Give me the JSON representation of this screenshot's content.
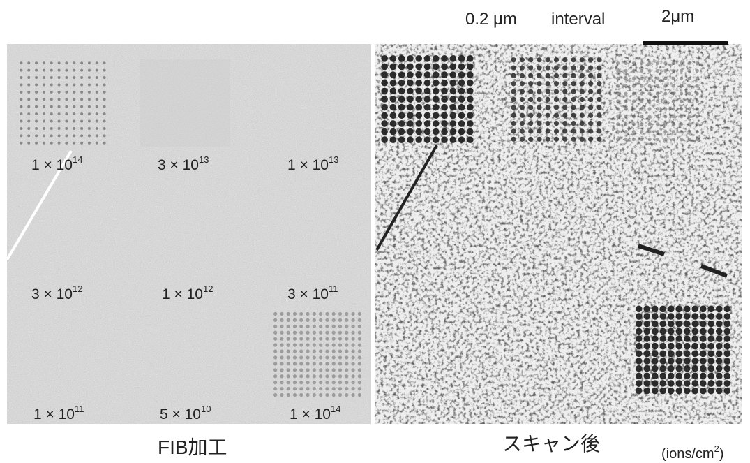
{
  "header": {
    "interval_value": "0.2 μm",
    "interval_word": "interval",
    "scale_bar": "2μm"
  },
  "left_panel": {
    "caption": "FIB加工",
    "labels": [
      {
        "base": "1 × 10",
        "exp": "14"
      },
      {
        "base": "3 × 10",
        "exp": "13"
      },
      {
        "base": "1 × 10",
        "exp": "13"
      },
      {
        "base": "3 × 10",
        "exp": "12"
      },
      {
        "base": "1 × 10",
        "exp": "12"
      },
      {
        "base": "3 × 10",
        "exp": "11"
      },
      {
        "base": "1 × 10",
        "exp": "11"
      },
      {
        "base": "5 × 10",
        "exp": "10"
      },
      {
        "base": "1 × 10",
        "exp": "14"
      }
    ]
  },
  "right_panel": {
    "caption": "スキャン後"
  },
  "unit": {
    "base": "(ions/cm",
    "exp": "2",
    "close": ")"
  }
}
